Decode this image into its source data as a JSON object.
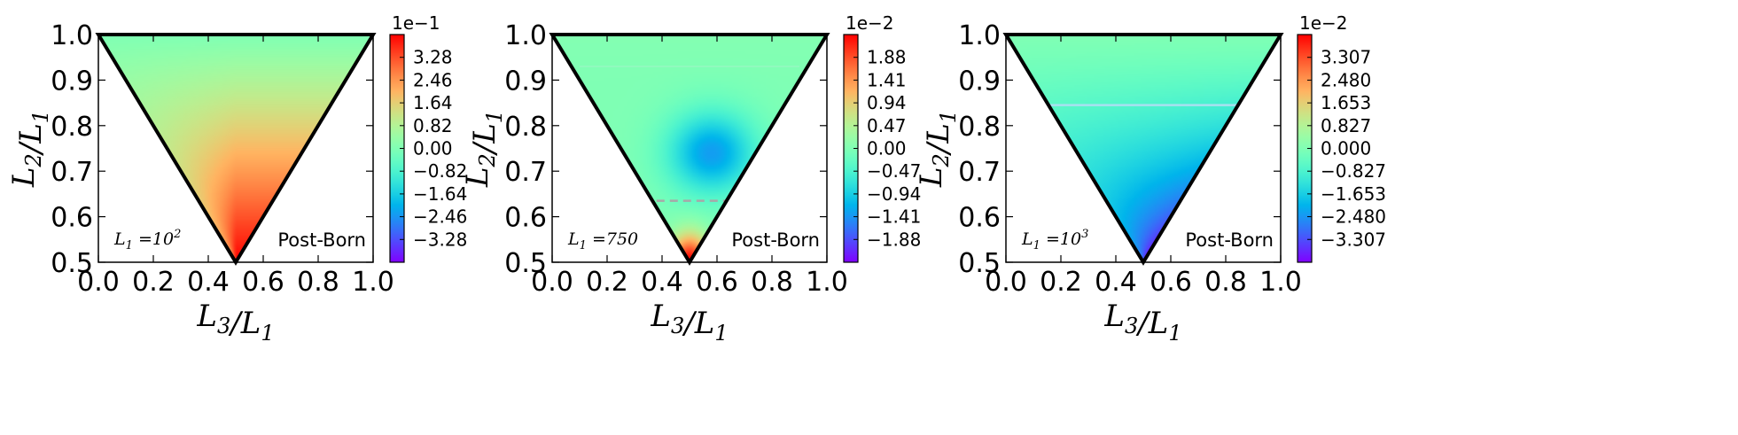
{
  "chart_data": [
    {
      "type": "heatmap",
      "xlabel": "L3/L1",
      "ylabel": "L2/L1",
      "xlim": [
        0.0,
        1.0
      ],
      "ylim": [
        0.5,
        1.0
      ],
      "x_ticks": [
        "0.0",
        "0.2",
        "0.4",
        "0.6",
        "0.8",
        "1.0"
      ],
      "y_ticks": [
        "0.5",
        "0.6",
        "0.7",
        "0.8",
        "0.9",
        "1.0"
      ],
      "domain": "triangle with vertices (0,1), (1,1), (0.5,0.5)",
      "colormap": "rainbow",
      "annotation_left": "L1 = 10^2",
      "annotation_right": "Post-Born",
      "colorbar": {
        "scale": "1e−1",
        "range": [
          -4.1,
          4.1
        ],
        "ticks": [
          "3.28",
          "2.46",
          "1.64",
          "0.82",
          "0.00",
          "−0.82",
          "−1.64",
          "−2.46",
          "−3.28"
        ]
      },
      "features": "values near 0 at the top edge, rising to the maximum (red) toward the bottom vertex (0.5, 0.5) along the right edge; faint dashed line along the left edge"
    },
    {
      "type": "heatmap",
      "xlabel": "L3/L1",
      "ylabel": "L2/L1",
      "xlim": [
        0.0,
        1.0
      ],
      "ylim": [
        0.5,
        1.0
      ],
      "x_ticks": [
        "0.0",
        "0.2",
        "0.4",
        "0.6",
        "0.8",
        "1.0"
      ],
      "y_ticks": [
        "0.5",
        "0.6",
        "0.7",
        "0.8",
        "0.9",
        "1.0"
      ],
      "domain": "triangle with vertices (0,1), (1,1), (0.5,0.5)",
      "colormap": "rainbow",
      "annotation_left": "L1 = 750",
      "annotation_right": "Post-Born",
      "colorbar": {
        "scale": "1e−2",
        "range": [
          -2.35,
          2.35
        ],
        "ticks": [
          "1.88",
          "1.41",
          "0.94",
          "0.47",
          "0.00",
          "−0.47",
          "−0.94",
          "−1.41",
          "−1.88"
        ]
      },
      "features": "near-zero at the top, negative (blue) minimum near (0.55, 0.73), sign change along a dashed line at L2/L1 ~ 0.635, positive (red) maximum at the bottom vertex"
    },
    {
      "type": "heatmap",
      "xlabel": "L3/L1",
      "ylabel": "L2/L1",
      "xlim": [
        0.0,
        1.0
      ],
      "ylim": [
        0.5,
        1.0
      ],
      "x_ticks": [
        "0.0",
        "0.2",
        "0.4",
        "0.6",
        "0.8",
        "1.0"
      ],
      "y_ticks": [
        "0.5",
        "0.6",
        "0.7",
        "0.8",
        "0.9",
        "1.0"
      ],
      "domain": "triangle with vertices (0,1), (1,1), (0.5,0.5)",
      "colormap": "rainbow",
      "annotation_left": "L1 = 10^3",
      "annotation_right": "Post-Born",
      "colorbar": {
        "scale": "1e−2",
        "range": [
          -4.135,
          4.135
        ],
        "ticks": [
          "3.307",
          "2.480",
          "1.653",
          "0.827",
          "0.000",
          "−0.827",
          "−1.653",
          "−2.480",
          "−3.307"
        ]
      },
      "features": "near-zero at the top, becoming increasingly negative (blue/purple) toward the bottom vertex along the right edge; thin light line at L2/L1 ~ 0.845"
    }
  ]
}
